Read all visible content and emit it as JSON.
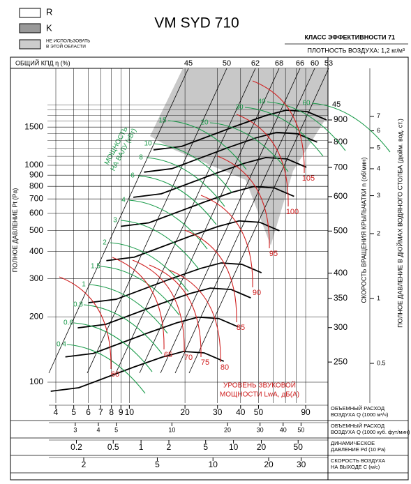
{
  "legend": {
    "r": "R",
    "k": "K",
    "excluded": [
      "НЕ ИСПОЛЬЗОВАТЬ",
      "В ЭТОЙ ОБЛАСТИ"
    ]
  },
  "title": "VM SYD 710",
  "efficiency_class": "КЛАСС ЭФФЕКТИВНОСТИ 71",
  "air_density": "ПЛОТНОСТЬ ВОЗДУХА: 1,2 кг/м³",
  "chart": {
    "efficiency_label": "ОБЩИЙ КПД η (%)",
    "efficiency_values": [
      45,
      50,
      62,
      68,
      66,
      60,
      53
    ],
    "efficiency_right": 45,
    "pressure_label": "ПОЛНОЕ ДАВЛЕНИЕ Pt (Pa)",
    "pressure_ticks": [
      100,
      200,
      300,
      400,
      500,
      600,
      700,
      800,
      900,
      1000,
      1500
    ],
    "rpm_label": "СКОРОСТЬ ВРАЩЕНИЯ КРЫЛЬЧАТКИ  n (об/мин)",
    "rpm_ticks": [
      900,
      800,
      700,
      600,
      500,
      400,
      350,
      300,
      250
    ],
    "inch_label": "ПОЛНОЕ ДАВЛЕНИЕ В ДЮЙМАХ ВОДЯНОГО СТОЛБА (дюйм. вод. ст.)",
    "inch_ticks": [
      7,
      6,
      5,
      4,
      3,
      2,
      1,
      0.5
    ],
    "power_label": [
      "МОЩНОСТЬ",
      "НА ВАЛУ (кВт)"
    ],
    "power_values": [
      0.4,
      0.6,
      0.8,
      1,
      1.5,
      2,
      3,
      4,
      6,
      8,
      10,
      15,
      20,
      30,
      40,
      60
    ],
    "sound_label": [
      "УРОВЕНЬ ЗВУКОВОЙ",
      "МОЩНОСТИ LwA, дБ(A)"
    ],
    "sound_values": [
      60,
      65,
      70,
      75,
      80,
      85,
      90,
      95,
      100,
      105
    ],
    "scales": [
      {
        "label": [
          "ОБЪЕМНЫЙ РАСХОД",
          "ВОЗДУХА Q (1000 м³/ч)"
        ],
        "ticks": [
          4,
          5,
          6,
          7,
          8,
          9,
          10,
          20,
          30,
          40,
          50,
          90
        ]
      },
      {
        "label": [
          "ОБЪЕМНЫЙ РАСХОД",
          "ВОЗДУХА Q (1000 куб. фут/мин)"
        ],
        "ticks": [
          3,
          4,
          5,
          10,
          20,
          30,
          40,
          50
        ]
      },
      {
        "label": [
          "ДИНАМИЧЕСКОЕ",
          "ДАВЛЕНИЕ Pd (10 Pa)"
        ],
        "ticks": [
          0.2,
          0.5,
          1,
          2,
          5,
          10,
          20,
          50
        ]
      },
      {
        "label": [
          "СКОРОСТЬ ВОЗДУХА",
          "НА ВЫХОДЕ C (м/с)"
        ],
        "ticks": [
          2,
          5,
          10,
          20,
          30
        ]
      }
    ]
  }
}
